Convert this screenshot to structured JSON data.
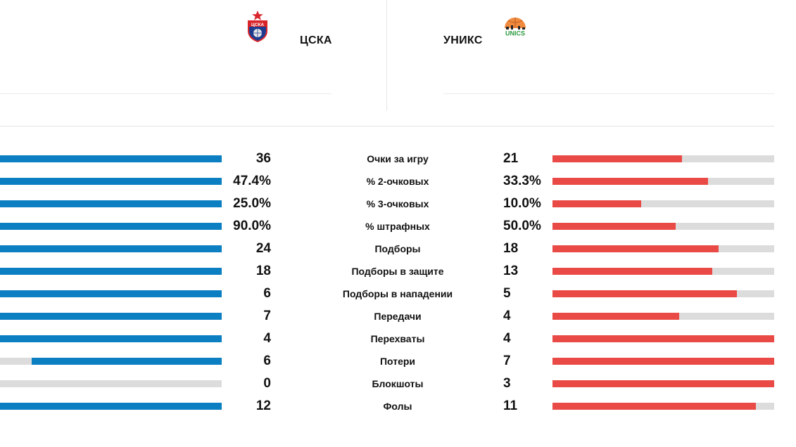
{
  "teams": {
    "home": {
      "name": "ЦСКА",
      "logo_icon": "cska-logo-icon",
      "logo_text": "ЦСКА"
    },
    "away": {
      "name": "УНИКС",
      "logo_icon": "unics-logo-icon",
      "logo_text": "UNICS"
    }
  },
  "colors": {
    "home": "#0b7fc2",
    "away": "#ea4a45",
    "track": "#dcdcdc"
  },
  "stats": [
    {
      "label": "Очки за игру",
      "home": "36",
      "away": "21",
      "home_fill": 1.0,
      "away_fill": 0.585
    },
    {
      "label": "% 2-очковых",
      "home": "47.4%",
      "away": "33.3%",
      "home_fill": 1.0,
      "away_fill": 0.703
    },
    {
      "label": "% 3-очковых",
      "home": "25.0%",
      "away": "10.0%",
      "home_fill": 1.0,
      "away_fill": 0.4
    },
    {
      "label": "% штрафных",
      "home": "90.0%",
      "away": "50.0%",
      "home_fill": 1.0,
      "away_fill": 0.556
    },
    {
      "label": "Подборы",
      "home": "24",
      "away": "18",
      "home_fill": 1.0,
      "away_fill": 0.75
    },
    {
      "label": "Подборы в защите",
      "home": "18",
      "away": "13",
      "home_fill": 1.0,
      "away_fill": 0.722
    },
    {
      "label": "Подборы в нападении",
      "home": "6",
      "away": "5",
      "home_fill": 1.0,
      "away_fill": 0.833
    },
    {
      "label": "Передачи",
      "home": "7",
      "away": "4",
      "home_fill": 1.0,
      "away_fill": 0.571
    },
    {
      "label": "Перехваты",
      "home": "4",
      "away": "4",
      "home_fill": 1.0,
      "away_fill": 1.0
    },
    {
      "label": "Потери",
      "home": "6",
      "away": "7",
      "home_fill": 0.857,
      "away_fill": 1.0
    },
    {
      "label": "Блокшоты",
      "home": "0",
      "away": "3",
      "home_fill": 0.0,
      "away_fill": 1.0
    },
    {
      "label": "Фолы",
      "home": "12",
      "away": "11",
      "home_fill": 1.0,
      "away_fill": 0.917
    }
  ]
}
